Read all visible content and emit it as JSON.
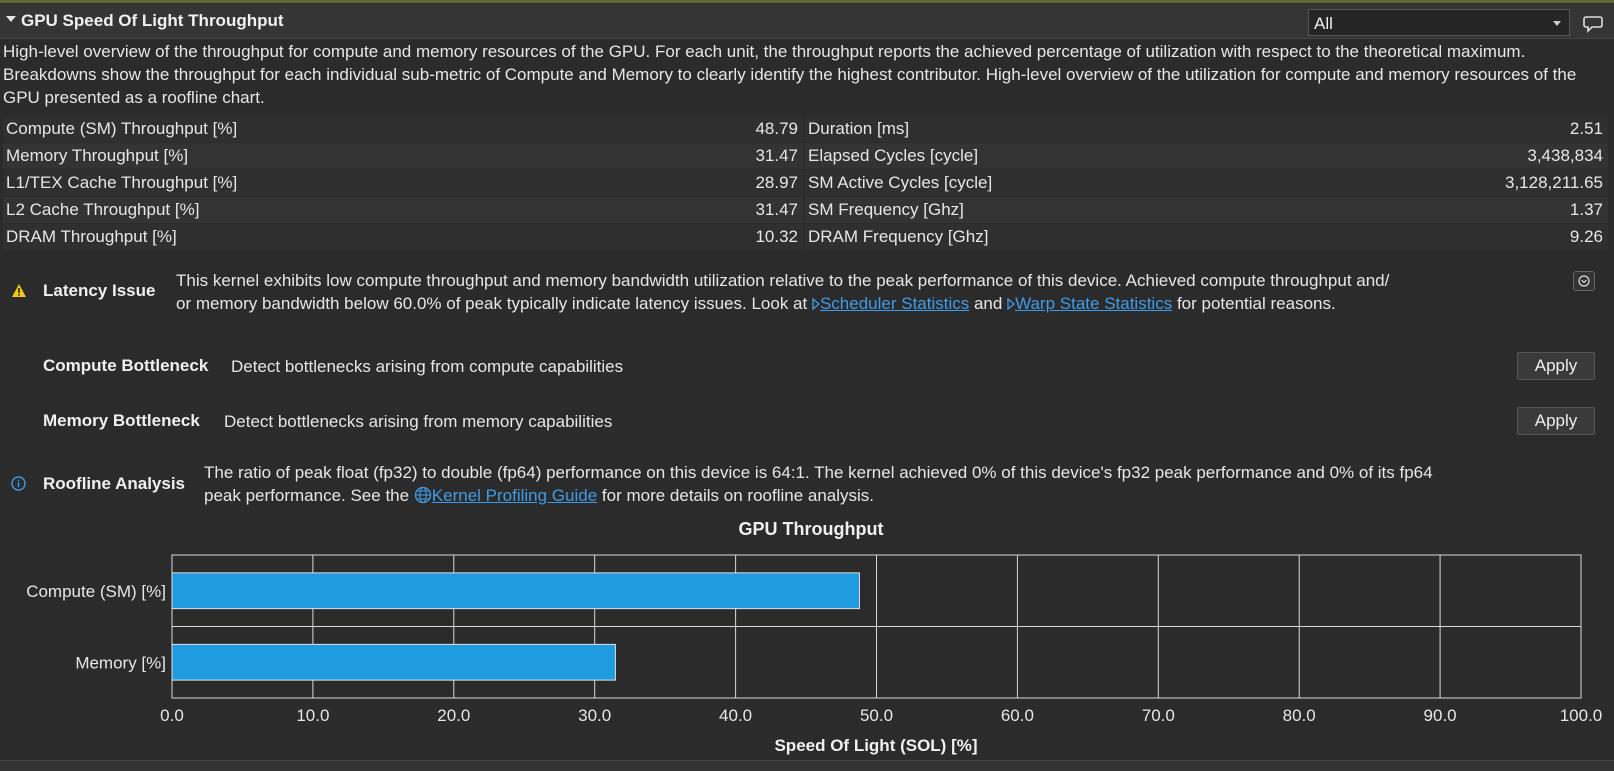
{
  "section": {
    "title": "GPU Speed Of Light Throughput",
    "filter_value": "All",
    "description": "High-level overview of the throughput for compute and memory resources of the GPU. For each unit, the throughput reports the achieved percentage of utilization with respect to the theoretical maximum. Breakdowns show the throughput for each individual sub-metric of Compute and Memory to clearly identify the highest contributor. High-level overview of the utilization for compute and memory resources of the GPU presented as a roofline chart."
  },
  "metrics_left": [
    {
      "name": "Compute (SM) Throughput [%]",
      "value": "48.79"
    },
    {
      "name": "Memory Throughput [%]",
      "value": "31.47"
    },
    {
      "name": "L1/TEX Cache Throughput [%]",
      "value": "28.97"
    },
    {
      "name": "L2 Cache Throughput [%]",
      "value": "31.47"
    },
    {
      "name": "DRAM Throughput [%]",
      "value": "10.32"
    }
  ],
  "metrics_right": [
    {
      "name": "Duration [ms]",
      "value": "2.51"
    },
    {
      "name": "Elapsed Cycles [cycle]",
      "value": "3,438,834"
    },
    {
      "name": "SM Active Cycles [cycle]",
      "value": "3,128,211.65"
    },
    {
      "name": "SM Frequency [Ghz]",
      "value": "1.37"
    },
    {
      "name": "DRAM Frequency [Ghz]",
      "value": "9.26"
    }
  ],
  "rules": {
    "latency": {
      "name": "Latency Issue",
      "text_line1": "This kernel exhibits low compute throughput and memory bandwidth utilization relative to the peak performance of this device. Achieved compute throughput and/",
      "text_line2_pre": "or memory bandwidth below 60.0% of peak typically indicate latency issues. Look at ",
      "link1": "Scheduler Statistics",
      "text_mid": " and ",
      "link2": "Warp State Statistics",
      "text_end": " for potential reasons."
    },
    "compute": {
      "name": "Compute Bottleneck",
      "text": "Detect bottlenecks arising from compute capabilities",
      "button": "Apply"
    },
    "memory": {
      "name": "Memory Bottleneck",
      "text": "Detect bottlenecks arising from memory capabilities",
      "button": "Apply"
    },
    "roofline": {
      "name": "Roofline Analysis",
      "text_line1": "The ratio of peak float (fp32) to double (fp64) performance on this device is 64:1. The kernel achieved 0% of this device's fp32 peak performance and 0% of its fp64",
      "text_line2_pre": "peak performance. See the ",
      "link": "Kernel Profiling Guide",
      "text_end": " for more details on roofline analysis."
    }
  },
  "colors": {
    "bar_fill": "#1f9ce0",
    "warning": "#f2c812",
    "info": "#3d9be9",
    "link": "#3d9be9"
  },
  "chart_data": {
    "type": "bar",
    "orientation": "horizontal",
    "title": "GPU Throughput",
    "xlabel": "Speed Of Light (SOL) [%]",
    "ylabel": "",
    "categories": [
      "Compute (SM) [%]",
      "Memory [%]"
    ],
    "values": [
      48.79,
      31.47
    ],
    "xlim": [
      0,
      100
    ],
    "xticks": [
      "0.0",
      "10.0",
      "20.0",
      "30.0",
      "40.0",
      "50.0",
      "60.0",
      "70.0",
      "80.0",
      "90.0",
      "100.0"
    ],
    "grid": true
  }
}
